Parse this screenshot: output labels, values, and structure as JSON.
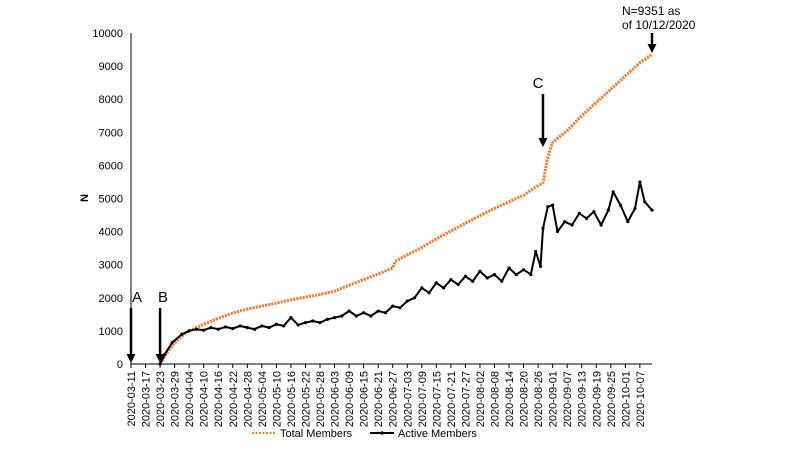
{
  "chart_data": {
    "type": "line",
    "ylabel": "N",
    "xlabel": "",
    "ylim": [
      0,
      10000
    ],
    "yticks": [
      0,
      1000,
      2000,
      3000,
      4000,
      5000,
      6000,
      7000,
      8000,
      9000,
      10000
    ],
    "xlim": [
      "2020-03-11",
      "2020-10-12"
    ],
    "x_tick_labels": [
      "2020-03-11",
      "2020-03-17",
      "2020-03-23",
      "2020-03-29",
      "2020-04-04",
      "2020-04-10",
      "2020-04-16",
      "2020-04-22",
      "2020-04-28",
      "2020-05-04",
      "2020-05-10",
      "2020-05-16",
      "2020-05-22",
      "2020-05-28",
      "2020-06-03",
      "2020-06-09",
      "2020-06-15",
      "2020-06-21",
      "2020-06-27",
      "2020-07-03",
      "2020-07-09",
      "2020-07-15",
      "2020-07-21",
      "2020-07-27",
      "2020-08-02",
      "2020-08-08",
      "2020-08-14",
      "2020-08-20",
      "2020-08-26",
      "2020-09-01",
      "2020-09-07",
      "2020-09-13",
      "2020-09-19",
      "2020-09-25",
      "2020-10-01",
      "2020-10-07"
    ],
    "legend_position": "bottom",
    "series": [
      {
        "name": "Total Members",
        "color": "#ED7D31",
        "points": [
          [
            "2020-03-23",
            0
          ],
          [
            "2020-03-25",
            250
          ],
          [
            "2020-03-28",
            550
          ],
          [
            "2020-04-01",
            850
          ],
          [
            "2020-04-04",
            1000
          ],
          [
            "2020-04-10",
            1200
          ],
          [
            "2020-04-16",
            1380
          ],
          [
            "2020-04-22",
            1540
          ],
          [
            "2020-04-28",
            1660
          ],
          [
            "2020-05-04",
            1750
          ],
          [
            "2020-05-10",
            1840
          ],
          [
            "2020-05-16",
            1940
          ],
          [
            "2020-05-22",
            2020
          ],
          [
            "2020-05-28",
            2100
          ],
          [
            "2020-06-03",
            2200
          ],
          [
            "2020-06-09",
            2380
          ],
          [
            "2020-06-15",
            2550
          ],
          [
            "2020-06-21",
            2720
          ],
          [
            "2020-06-27",
            2900
          ],
          [
            "2020-06-28",
            3100
          ],
          [
            "2020-07-03",
            3300
          ],
          [
            "2020-07-09",
            3520
          ],
          [
            "2020-07-15",
            3780
          ],
          [
            "2020-07-21",
            4020
          ],
          [
            "2020-07-27",
            4250
          ],
          [
            "2020-08-02",
            4480
          ],
          [
            "2020-08-08",
            4700
          ],
          [
            "2020-08-14",
            4900
          ],
          [
            "2020-08-20",
            5100
          ],
          [
            "2020-08-24",
            5300
          ],
          [
            "2020-08-28",
            5480
          ],
          [
            "2020-08-30",
            6250
          ],
          [
            "2020-09-01",
            6700
          ],
          [
            "2020-09-07",
            7050
          ],
          [
            "2020-09-13",
            7500
          ],
          [
            "2020-09-19",
            7900
          ],
          [
            "2020-09-25",
            8300
          ],
          [
            "2020-10-01",
            8700
          ],
          [
            "2020-10-07",
            9100
          ],
          [
            "2020-10-12",
            9351
          ]
        ]
      },
      {
        "name": "Active Members",
        "color": "#000000",
        "points": [
          [
            "2020-03-23",
            0
          ],
          [
            "2020-03-25",
            300
          ],
          [
            "2020-03-28",
            650
          ],
          [
            "2020-04-01",
            900
          ],
          [
            "2020-04-04",
            1000
          ],
          [
            "2020-04-07",
            1050
          ],
          [
            "2020-04-10",
            1020
          ],
          [
            "2020-04-13",
            1100
          ],
          [
            "2020-04-16",
            1050
          ],
          [
            "2020-04-19",
            1120
          ],
          [
            "2020-04-22",
            1070
          ],
          [
            "2020-04-25",
            1150
          ],
          [
            "2020-04-28",
            1100
          ],
          [
            "2020-05-01",
            1050
          ],
          [
            "2020-05-04",
            1150
          ],
          [
            "2020-05-07",
            1100
          ],
          [
            "2020-05-10",
            1200
          ],
          [
            "2020-05-13",
            1150
          ],
          [
            "2020-05-16",
            1400
          ],
          [
            "2020-05-19",
            1180
          ],
          [
            "2020-05-22",
            1250
          ],
          [
            "2020-05-25",
            1300
          ],
          [
            "2020-05-28",
            1250
          ],
          [
            "2020-05-31",
            1350
          ],
          [
            "2020-06-03",
            1400
          ],
          [
            "2020-06-06",
            1450
          ],
          [
            "2020-06-09",
            1600
          ],
          [
            "2020-06-12",
            1450
          ],
          [
            "2020-06-15",
            1550
          ],
          [
            "2020-06-18",
            1450
          ],
          [
            "2020-06-21",
            1600
          ],
          [
            "2020-06-24",
            1550
          ],
          [
            "2020-06-27",
            1750
          ],
          [
            "2020-06-30",
            1700
          ],
          [
            "2020-07-03",
            1900
          ],
          [
            "2020-07-06",
            2000
          ],
          [
            "2020-07-09",
            2300
          ],
          [
            "2020-07-12",
            2150
          ],
          [
            "2020-07-15",
            2450
          ],
          [
            "2020-07-18",
            2300
          ],
          [
            "2020-07-21",
            2550
          ],
          [
            "2020-07-24",
            2400
          ],
          [
            "2020-07-27",
            2650
          ],
          [
            "2020-07-30",
            2500
          ],
          [
            "2020-08-02",
            2800
          ],
          [
            "2020-08-05",
            2600
          ],
          [
            "2020-08-08",
            2700
          ],
          [
            "2020-08-11",
            2500
          ],
          [
            "2020-08-14",
            2900
          ],
          [
            "2020-08-17",
            2700
          ],
          [
            "2020-08-20",
            2850
          ],
          [
            "2020-08-23",
            2700
          ],
          [
            "2020-08-25",
            3400
          ],
          [
            "2020-08-27",
            2950
          ],
          [
            "2020-08-28",
            4100
          ],
          [
            "2020-08-30",
            4750
          ],
          [
            "2020-09-01",
            4800
          ],
          [
            "2020-09-03",
            4000
          ],
          [
            "2020-09-06",
            4300
          ],
          [
            "2020-09-09",
            4200
          ],
          [
            "2020-09-12",
            4550
          ],
          [
            "2020-09-15",
            4400
          ],
          [
            "2020-09-18",
            4600
          ],
          [
            "2020-09-21",
            4200
          ],
          [
            "2020-09-24",
            4650
          ],
          [
            "2020-09-26",
            5200
          ],
          [
            "2020-09-29",
            4800
          ],
          [
            "2020-10-02",
            4300
          ],
          [
            "2020-10-05",
            4700
          ],
          [
            "2020-10-07",
            5500
          ],
          [
            "2020-10-09",
            4900
          ],
          [
            "2020-10-12",
            4650
          ]
        ]
      }
    ],
    "annotations": [
      {
        "label": "A",
        "date": "2020-03-11"
      },
      {
        "label": "B",
        "date": "2020-03-23"
      },
      {
        "label": "C",
        "date": "2020-08-28"
      }
    ],
    "note": {
      "line1": "N=9351 as",
      "line2": "of 10/12/2020",
      "date": "2020-10-12"
    }
  }
}
